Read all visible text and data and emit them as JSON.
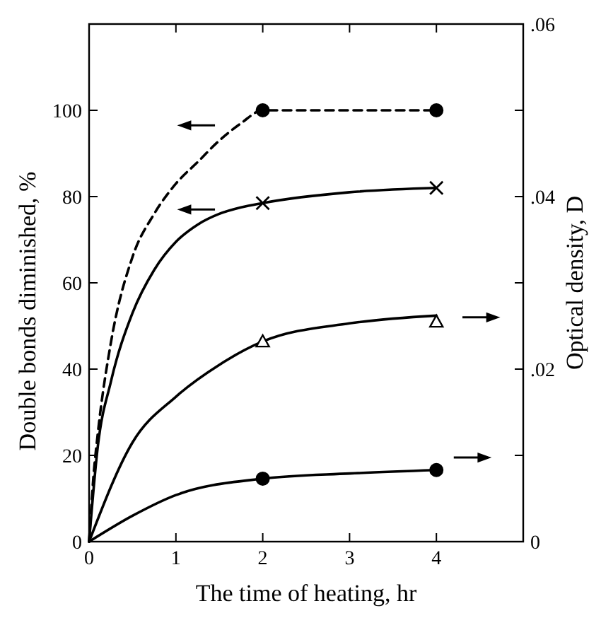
{
  "chart_data": {
    "type": "line",
    "xlabel": "The time of heating, hr",
    "ylabel": "Double bonds diminished, %",
    "y2label": "Optical density, D",
    "xlim": [
      0,
      5
    ],
    "xticks": [
      0,
      1,
      2,
      3,
      4
    ],
    "ylim": [
      0,
      120
    ],
    "yticks": [
      0,
      20,
      40,
      60,
      80,
      100,
      {
        "value": 120,
        "label": null
      }
    ],
    "y2lim": [
      0,
      0.06
    ],
    "y2ticks": [
      {
        "value": 0,
        "label": "0"
      },
      {
        "value": 0.01,
        "label": null
      },
      {
        "value": 0.02,
        "label": ".02"
      },
      {
        "value": 0.03,
        "label": null
      },
      {
        "value": 0.04,
        "label": ".04"
      },
      {
        "value": 0.05,
        "label": null
      },
      {
        "value": 0.06,
        "label": ".06"
      }
    ],
    "grid": false,
    "series": [
      {
        "color": "#000000",
        "line_style": "dashed",
        "marker": "none",
        "x": [
          0,
          0.05,
          0.1,
          0.25,
          0.5,
          0.75,
          1,
          1.25,
          1.5,
          1.75,
          2,
          3,
          4
        ],
        "values": [
          0,
          15,
          25,
          46,
          66,
          76,
          83,
          88,
          93,
          97,
          100,
          100,
          100
        ]
      },
      {
        "type": "scatter",
        "color": "#000000",
        "marker": "circle",
        "x": [
          2,
          4
        ],
        "values": [
          100,
          100
        ]
      },
      {
        "color": "#000000",
        "line_style": "solid",
        "marker": "none",
        "x": [
          0,
          0.1,
          0.25,
          0.5,
          0.75,
          1,
          1.25,
          1.5,
          1.75,
          2,
          3,
          4
        ],
        "values": [
          0,
          22,
          37,
          53,
          63,
          69.5,
          73.5,
          76,
          77.5,
          78.5,
          81,
          82
        ]
      },
      {
        "type": "scatter",
        "color": "#000000",
        "marker": "cross",
        "x": [
          2,
          4
        ],
        "values": [
          78.5,
          82
        ]
      },
      {
        "axis": "y2",
        "color": "#000000",
        "line_style": "solid",
        "marker": "none",
        "x": [
          0,
          0.5,
          1,
          1.5,
          2,
          3,
          4
        ],
        "values": [
          0,
          0.0115,
          0.0168,
          0.0205,
          0.0232,
          0.0253,
          0.0262
        ]
      },
      {
        "type": "scatter",
        "axis": "y2",
        "color": "#000000",
        "marker": "triangle",
        "x": [
          2,
          4
        ],
        "values": [
          0.0232,
          0.0255
        ]
      },
      {
        "axis": "y2",
        "color": "#000000",
        "line_style": "solid",
        "marker": "none",
        "x": [
          0,
          0.5,
          1,
          2,
          3,
          4
        ],
        "values": [
          0,
          0.003,
          0.0054,
          0.0073,
          0.0079,
          0.0083
        ]
      },
      {
        "type": "scatter",
        "axis": "y2",
        "color": "#000000",
        "marker": "circle",
        "x": [
          2,
          4
        ],
        "values": [
          0.0073,
          0.0083
        ]
      }
    ]
  }
}
